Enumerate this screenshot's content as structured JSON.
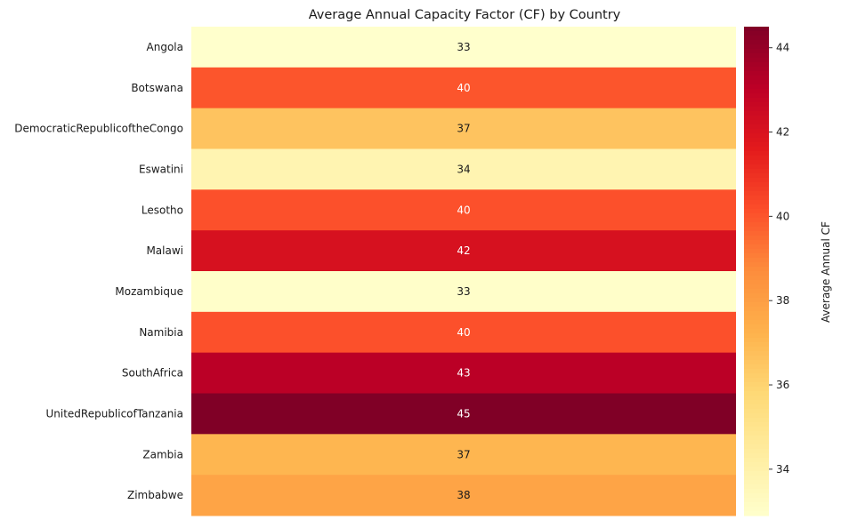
{
  "chart_data": {
    "type": "heatmap",
    "title": "Average Annual Capacity Factor (CF) by Country",
    "xlabel": "",
    "ylabel": "",
    "rows": [
      "Angola",
      "Botswana",
      "DemocraticRepublicoftheCongo",
      "Eswatini",
      "Lesotho",
      "Malawi",
      "Mozambique",
      "Namibia",
      "SouthAfrica",
      "UnitedRepublicofTanzania",
      "Zambia",
      "Zimbabwe"
    ],
    "values": [
      32.9,
      40.0,
      36.6,
      33.8,
      40.1,
      42.1,
      33.0,
      40.1,
      43.1,
      44.5,
      37.1,
      37.8
    ],
    "annotations": [
      "33",
      "40",
      "37",
      "34",
      "40",
      "42",
      "33",
      "40",
      "43",
      "45",
      "37",
      "38"
    ],
    "colormap": "YlOrRd",
    "colorbar": {
      "label": "Average Annual CF",
      "vmin": 32.9,
      "vmax": 44.5,
      "ticks": [
        34,
        36,
        38,
        40,
        42,
        44
      ]
    },
    "grid": false
  }
}
